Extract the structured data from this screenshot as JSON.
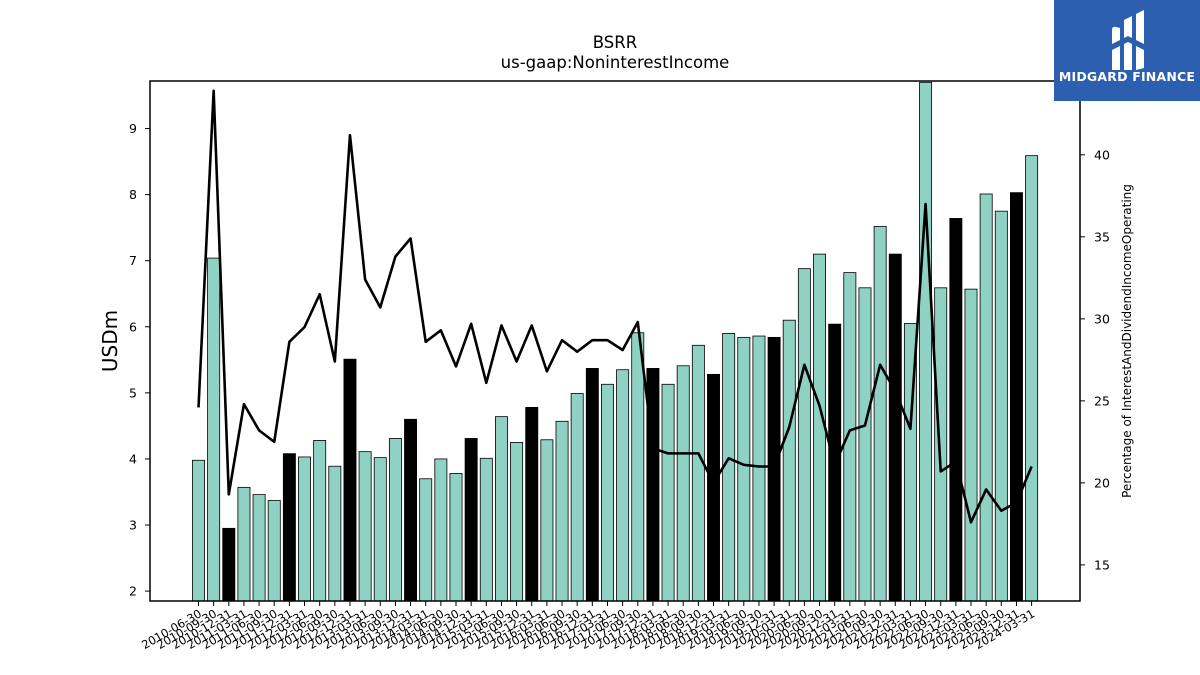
{
  "logo": {
    "text": "MIDGARD FINANCE",
    "background": "#2d5fb0"
  },
  "chart_data": {
    "type": "bar",
    "title": "BSRR",
    "subtitle": "us-gaap:NoninterestIncome",
    "ylabel": "USDm",
    "y2label": "Percentage of InterestAndDividendIncomeOperating",
    "ylim": [
      1.85,
      9.72
    ],
    "y2lim": [
      12.8,
      44.5
    ],
    "yticks": [
      2,
      3,
      4,
      5,
      6,
      7,
      8,
      9
    ],
    "y2ticks": [
      15,
      20,
      25,
      30,
      35,
      40
    ],
    "colors": {
      "bar": "#8fd2c4",
      "bar_highlight": "#000000",
      "line": "#000000"
    },
    "categories": [
      "2010-06-30",
      "2010-09-30",
      "2010-12-31",
      "2011-03-31",
      "2011-06-30",
      "2011-09-30",
      "2011-12-31",
      "2012-03-31",
      "2012-06-30",
      "2012-09-30",
      "2012-12-31",
      "2013-03-31",
      "2013-06-30",
      "2013-09-30",
      "2013-12-31",
      "2014-03-31",
      "2014-06-30",
      "2014-09-30",
      "2014-12-31",
      "2015-03-31",
      "2015-06-30",
      "2015-09-30",
      "2015-12-31",
      "2016-03-31",
      "2016-06-30",
      "2016-09-30",
      "2016-12-31",
      "2017-03-31",
      "2017-06-30",
      "2017-09-30",
      "2017-12-31",
      "2018-03-31",
      "2018-06-30",
      "2018-09-30",
      "2018-12-31",
      "2019-03-31",
      "2019-06-30",
      "2019-09-30",
      "2019-12-31",
      "2020-03-31",
      "2020-06-30",
      "2020-09-30",
      "2020-12-31",
      "2021-03-31",
      "2021-06-30",
      "2021-09-30",
      "2021-12-31",
      "2022-03-31",
      "2022-06-30",
      "2022-09-30",
      "2022-12-31",
      "2023-03-31",
      "2023-06-30",
      "2023-09-30",
      "2023-12-31",
      "2024-03-31"
    ],
    "series": [
      {
        "type": "bar",
        "values": [
          3.98,
          7.04,
          2.95,
          3.57,
          3.46,
          3.37,
          4.08,
          4.03,
          4.28,
          3.89,
          5.51,
          4.11,
          4.02,
          4.31,
          4.6,
          3.7,
          4.0,
          3.78,
          4.31,
          4.01,
          4.64,
          4.25,
          4.78,
          4.29,
          4.57,
          4.99,
          5.37,
          5.13,
          5.35,
          5.91,
          5.37,
          5.13,
          5.41,
          5.72,
          5.28,
          5.9,
          5.84,
          5.86,
          5.84,
          6.1,
          6.88,
          7.1,
          6.04,
          6.82,
          6.59,
          7.52,
          7.1,
          6.05,
          9.7,
          6.59,
          7.64,
          6.57,
          8.01,
          7.75,
          8.03,
          8.59
        ],
        "highlight": [
          false,
          false,
          true,
          false,
          false,
          false,
          true,
          false,
          false,
          false,
          true,
          false,
          false,
          false,
          true,
          false,
          false,
          false,
          true,
          false,
          false,
          false,
          true,
          false,
          false,
          false,
          true,
          false,
          false,
          false,
          true,
          false,
          false,
          false,
          true,
          false,
          false,
          false,
          true,
          false,
          false,
          false,
          true,
          false,
          false,
          false,
          true,
          false,
          false,
          false,
          true,
          false,
          false,
          false,
          true,
          false
        ]
      },
      {
        "type": "line",
        "axis": "right",
        "values": [
          24.6,
          43.9,
          19.3,
          24.8,
          23.2,
          22.5,
          28.6,
          29.5,
          31.5,
          27.4,
          41.2,
          32.4,
          30.7,
          33.8,
          34.9,
          28.6,
          29.3,
          27.1,
          29.7,
          26.1,
          29.6,
          27.4,
          29.6,
          26.8,
          28.7,
          28.0,
          28.7,
          28.7,
          28.1,
          29.8,
          22.1,
          21.8,
          21.8,
          21.8,
          20.0,
          21.5,
          21.1,
          21.0,
          21.0,
          23.4,
          27.2,
          24.7,
          21.1,
          23.2,
          23.5,
          27.2,
          25.6,
          23.3,
          37.0,
          20.7,
          21.3,
          17.6,
          19.6,
          18.3,
          18.8,
          21.0
        ]
      }
    ]
  }
}
